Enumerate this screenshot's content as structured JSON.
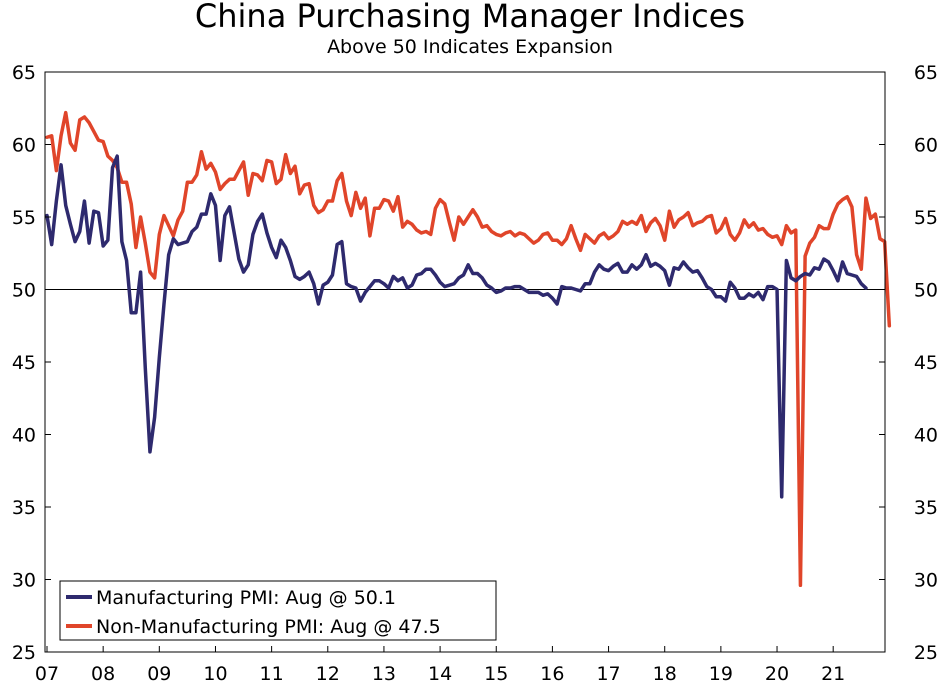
{
  "chart_data": {
    "type": "line",
    "title": "China Purchasing Manager Indices",
    "subtitle": "Above 50 Indicates Expansion",
    "xlabel": "",
    "ylabel": "",
    "ylim": [
      25,
      65
    ],
    "y_ticks": [
      25,
      30,
      35,
      40,
      45,
      50,
      55,
      60,
      65
    ],
    "reference_line": 50,
    "x_start": "2007-01",
    "x_end": "2021-08",
    "x_ticks": [
      {
        "label": "07",
        "month_index": 0
      },
      {
        "label": "08",
        "month_index": 12
      },
      {
        "label": "09",
        "month_index": 24
      },
      {
        "label": "10",
        "month_index": 36
      },
      {
        "label": "11",
        "month_index": 48
      },
      {
        "label": "12",
        "month_index": 60
      },
      {
        "label": "13",
        "month_index": 72
      },
      {
        "label": "14",
        "month_index": 84
      },
      {
        "label": "15",
        "month_index": 96
      },
      {
        "label": "16",
        "month_index": 108
      },
      {
        "label": "17",
        "month_index": 120
      },
      {
        "label": "18",
        "month_index": 132
      },
      {
        "label": "19",
        "month_index": 144
      },
      {
        "label": "20",
        "month_index": 156
      },
      {
        "label": "21",
        "month_index": 168
      }
    ],
    "legend_position": "bottom-left",
    "series": [
      {
        "name": "Manufacturing PMI: Aug @ 50.1",
        "color": "#2e2a6e",
        "values": [
          55.1,
          53.1,
          56.1,
          58.6,
          55.8,
          54.5,
          53.3,
          54.0,
          56.1,
          53.2,
          55.4,
          55.3,
          53.0,
          53.4,
          58.4,
          59.2,
          53.3,
          52.0,
          48.4,
          48.4,
          51.2,
          44.6,
          38.8,
          41.2,
          45.3,
          49.0,
          52.4,
          53.5,
          53.1,
          53.2,
          53.3,
          54.0,
          54.3,
          55.2,
          55.2,
          56.6,
          55.8,
          52.0,
          55.1,
          55.7,
          53.9,
          52.1,
          51.2,
          51.7,
          53.8,
          54.7,
          55.2,
          53.9,
          52.9,
          52.2,
          53.4,
          52.9,
          52.0,
          50.9,
          50.7,
          50.9,
          51.2,
          50.4,
          49.0,
          50.3,
          50.5,
          51.0,
          53.1,
          53.3,
          50.4,
          50.2,
          50.1,
          49.2,
          49.8,
          50.2,
          50.6,
          50.6,
          50.4,
          50.1,
          50.9,
          50.6,
          50.8,
          50.1,
          50.3,
          51.0,
          51.1,
          51.4,
          51.4,
          51.0,
          50.5,
          50.2,
          50.3,
          50.4,
          50.8,
          51.0,
          51.7,
          51.1,
          51.1,
          50.8,
          50.3,
          50.1,
          49.8,
          49.9,
          50.1,
          50.1,
          50.2,
          50.2,
          50.0,
          49.8,
          49.8,
          49.8,
          49.6,
          49.7,
          49.4,
          49.0,
          50.2,
          50.1,
          50.1,
          50.0,
          49.9,
          50.4,
          50.4,
          51.2,
          51.7,
          51.4,
          51.3,
          51.6,
          51.8,
          51.2,
          51.2,
          51.7,
          51.4,
          51.7,
          52.4,
          51.6,
          51.8,
          51.6,
          51.3,
          50.3,
          51.5,
          51.4,
          51.9,
          51.5,
          51.2,
          51.3,
          50.8,
          50.2,
          50.0,
          49.5,
          49.5,
          49.2,
          50.5,
          50.1,
          49.4,
          49.4,
          49.7,
          49.5,
          49.8,
          49.3,
          50.2,
          50.2,
          50.0,
          35.7,
          52.0,
          50.8,
          50.6,
          50.9,
          51.1,
          51.0,
          51.5,
          51.4,
          52.1,
          51.9,
          51.3,
          50.6,
          51.9,
          51.1,
          51.0,
          50.9,
          50.4,
          50.1
        ]
      },
      {
        "name": "Non-Manufacturing PMI: Aug @ 47.5",
        "color": "#e0452a",
        "values": [
          60.5,
          60.6,
          58.2,
          60.6,
          62.2,
          60.1,
          59.6,
          61.7,
          61.9,
          61.5,
          60.9,
          60.3,
          60.2,
          59.2,
          58.9,
          58.4,
          57.4,
          57.4,
          55.9,
          52.9,
          55.0,
          53.2,
          51.2,
          50.8,
          53.8,
          55.1,
          54.4,
          53.7,
          54.8,
          55.4,
          57.4,
          57.4,
          57.9,
          59.5,
          58.3,
          58.7,
          58.1,
          56.9,
          57.3,
          57.6,
          57.6,
          58.2,
          58.8,
          56.5,
          58.0,
          57.9,
          57.5,
          58.9,
          58.8,
          57.3,
          57.6,
          59.3,
          58.0,
          58.5,
          56.6,
          57.2,
          57.3,
          55.8,
          55.3,
          55.5,
          56.1,
          56.1,
          57.5,
          58.0,
          56.1,
          55.1,
          56.7,
          55.6,
          56.3,
          53.7,
          55.6,
          55.6,
          56.2,
          56.1,
          55.4,
          56.4,
          54.3,
          54.7,
          54.5,
          54.1,
          53.9,
          54.0,
          53.8,
          55.6,
          56.2,
          55.9,
          54.6,
          53.4,
          55.0,
          54.5,
          55.0,
          55.5,
          55.0,
          54.3,
          54.4,
          54.0,
          53.8,
          53.7,
          53.9,
          54.0,
          53.7,
          53.9,
          53.8,
          53.5,
          53.2,
          53.4,
          53.8,
          53.9,
          53.4,
          53.4,
          53.1,
          53.5,
          54.4,
          53.5,
          52.7,
          53.8,
          53.5,
          53.2,
          53.7,
          53.9,
          53.5,
          53.7,
          54.0,
          54.7,
          54.5,
          54.7,
          54.5,
          55.1,
          54.0,
          54.6,
          54.9,
          54.4,
          53.4,
          55.4,
          54.3,
          54.8,
          55.0,
          55.3,
          54.4,
          54.6,
          54.7,
          55.0,
          55.1,
          53.9,
          54.2,
          54.9,
          53.8,
          53.4,
          53.9,
          54.8,
          54.3,
          54.6,
          54.1,
          54.2,
          53.8,
          53.6,
          53.7,
          53.1,
          54.4,
          53.9,
          54.1,
          29.6,
          52.3,
          53.2,
          53.6,
          54.4,
          54.2,
          54.2,
          55.2,
          55.9,
          56.2,
          56.4,
          55.7,
          52.4,
          51.4,
          56.3,
          54.9,
          55.2,
          53.5,
          53.3,
          47.5
        ]
      }
    ]
  }
}
